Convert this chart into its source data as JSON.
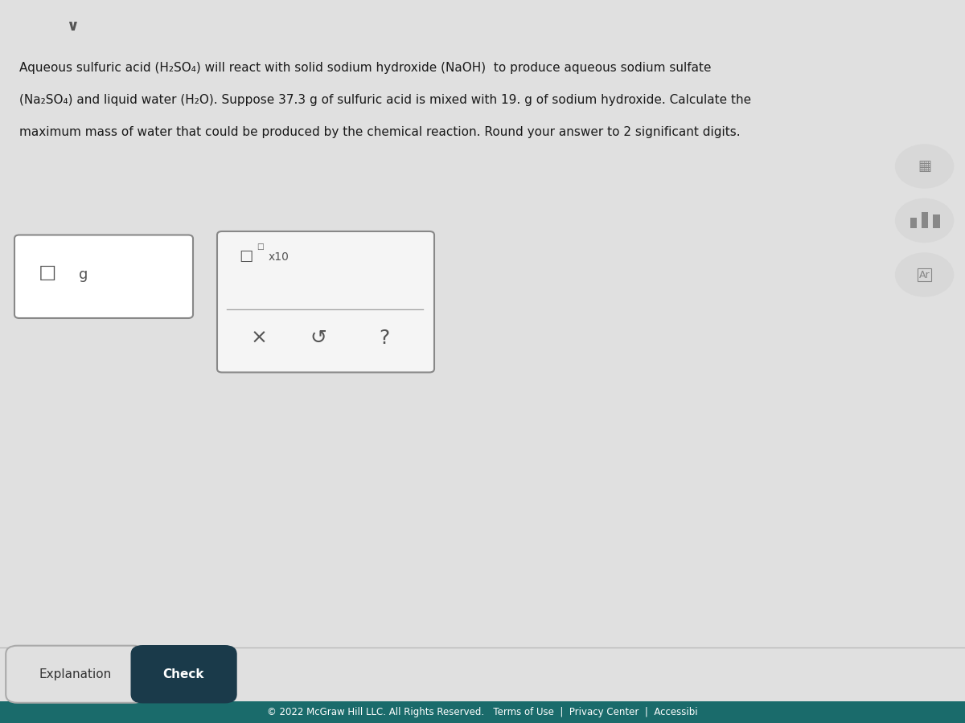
{
  "bg_color": "#e0e0e0",
  "footer_bg": "#1a6b6b",
  "footer_text": "© 2022 McGraw Hill LLC. All Rights Reserved.   Terms of Use  |  Privacy Center  |  Accessibi",
  "footer_text_color": "#ffffff",
  "paragraph_text_line1": "Aqueous sulfuric acid (H₂SO₄) will react with solid sodium hydroxide (NaOH)  to produce aqueous sodium sulfate",
  "paragraph_text_line2": "(Na₂SO₄) and liquid water (H₂O). Suppose 37.3 g of sulfuric acid is mixed with 19. g of sodium hydroxide. Calculate the",
  "paragraph_text_line3": "maximum mass of water that could be produced by the chemical reaction. Round your answer to 2 significant digits.",
  "text_color": "#1a1a1a",
  "input_box_color": "#ffffff",
  "input_border_color": "#888888",
  "popup_box_color": "#f5f5f5",
  "popup_border_color": "#888888",
  "explanation_btn_text": "Explanation",
  "check_btn_text": "Check",
  "check_btn_bg": "#1a3a4a",
  "check_btn_text_color": "#ffffff",
  "explanation_btn_bg": "#e0e0e0",
  "explanation_btn_text_color": "#333333",
  "top_chevron_color": "#555555",
  "icon_color": "#888888",
  "divider_color": "#aaaaaa",
  "line_color": "#bbbbbb"
}
